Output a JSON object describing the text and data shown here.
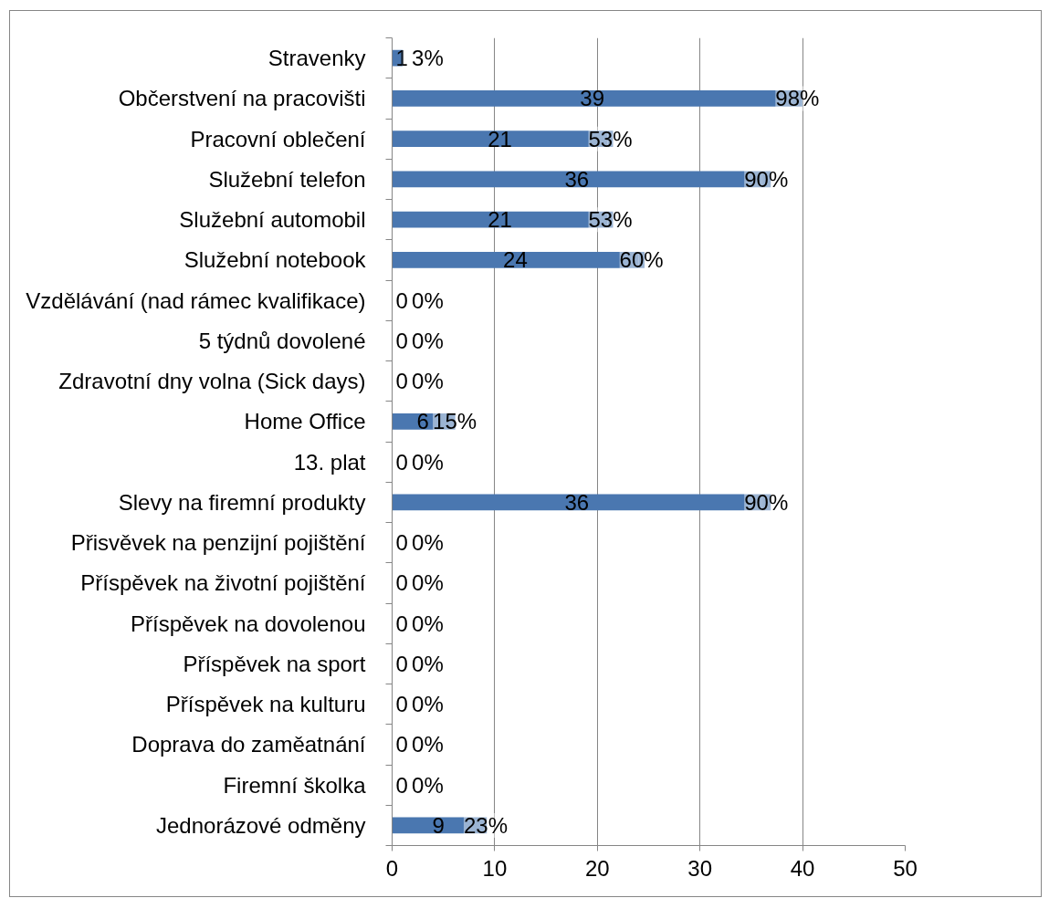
{
  "chart_data": {
    "type": "bar",
    "orientation": "horizontal",
    "stacked": true,
    "categories": [
      "Stravenky",
      "Občerstvení na pracovišti",
      "Pracovní oblečení",
      "Služební telefon",
      "Služební automobil",
      "Služební notebook",
      "Vzdělávání (nad rámec kvalifikace)",
      "5 týdnů dovolené",
      "Zdravotní dny volna (Sick days)",
      "Home Office",
      "13. plat",
      "Slevy na firemní produkty",
      "Přisvěvek na penzijní pojištění",
      "Příspěvek na životní pojištění",
      "Příspěvek na dovolenou",
      "Příspěvek na sport",
      "Příspěvek na kulturu",
      "Doprava do zaměatnání",
      "Firemní školka",
      "Jednorázové odměny"
    ],
    "series": [
      {
        "color": "#4a77b0",
        "values": [
          1,
          39,
          21,
          36,
          21,
          24,
          0,
          0,
          0,
          6,
          0,
          36,
          0,
          0,
          0,
          0,
          0,
          0,
          0,
          9
        ],
        "value_labels": [
          "1",
          "39",
          "21",
          "36",
          "21",
          "24",
          "0",
          "0",
          "0",
          "6",
          "0",
          "36",
          "0",
          "0",
          "0",
          "0",
          "0",
          "0",
          "0",
          "9"
        ]
      },
      {
        "color": "#4a77b0",
        "values": [
          0.03,
          0.98,
          0.53,
          0.9,
          0.53,
          0.6,
          0,
          0,
          0,
          0.15,
          0,
          0.9,
          0,
          0,
          0,
          0,
          0,
          0,
          0,
          0.23
        ],
        "value_labels": [
          "3%",
          "98%",
          "53%",
          "90%",
          "53%",
          "60%",
          "0%",
          "0%",
          "0%",
          "15%",
          "0%",
          "90%",
          "0%",
          "0%",
          "0%",
          "0%",
          "0%",
          "0%",
          "0%",
          "23%"
        ]
      }
    ],
    "xlim": [
      0,
      50
    ],
    "xticks": [
      0,
      10,
      20,
      30,
      40,
      50
    ],
    "grid": "x"
  }
}
